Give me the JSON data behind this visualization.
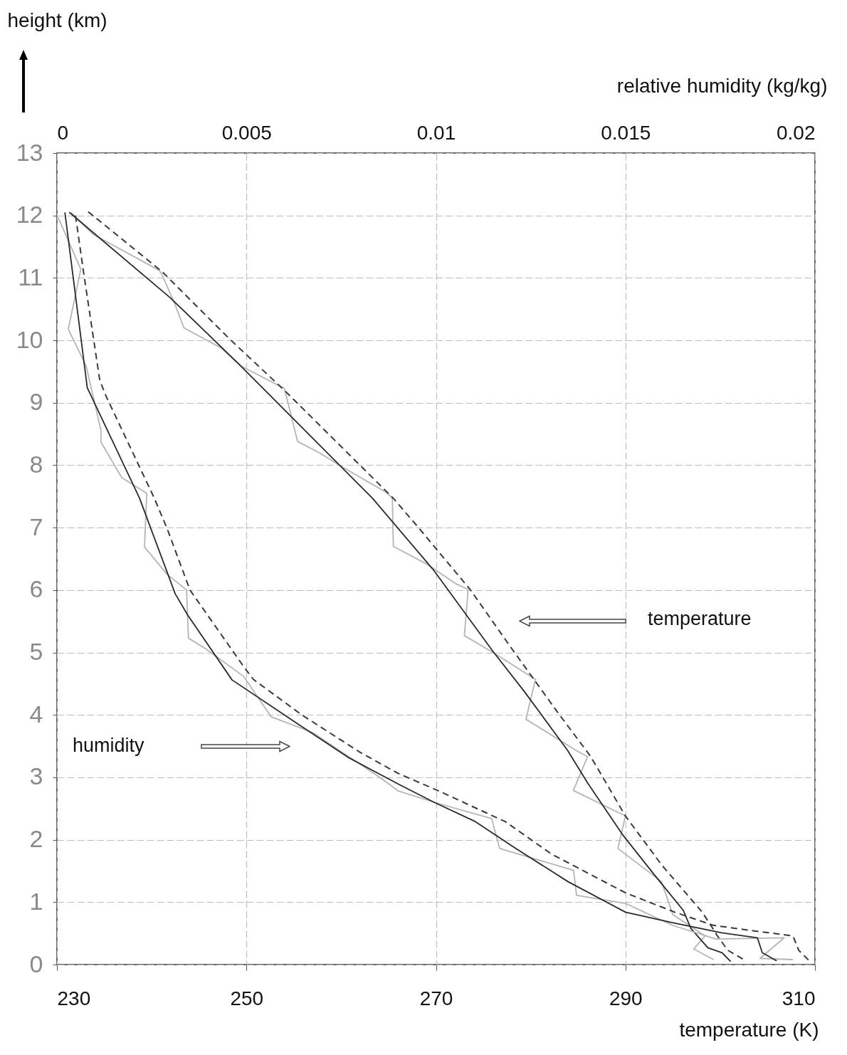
{
  "chart_data": {
    "type": "line",
    "xlabel": "temperature (K)",
    "x2label": "relative humidity (kg/kg)",
    "ylabel": "height (km)",
    "xlim": [
      230,
      310
    ],
    "xticks": [
      230,
      250,
      270,
      290,
      310
    ],
    "x2lim": [
      0,
      0.02
    ],
    "x2ticks": [
      0,
      0.005,
      0.01,
      0.015,
      0.02
    ],
    "ylim": [
      0,
      13
    ],
    "yticks": [
      0,
      1,
      2,
      3,
      4,
      5,
      6,
      7,
      8,
      9,
      10,
      11,
      12,
      13
    ],
    "grid": true,
    "annotations": [
      "temperature",
      "humidity"
    ],
    "series": [
      {
        "color": "#b5b5b5",
        "line_style": "solid",
        "x": [
          231.5,
          233.8,
          240.8,
          241.1,
          242.5,
          243.4,
          247.3,
          249.4,
          254,
          254.3,
          255.4,
          257.8,
          259.8,
          264.8,
          265.4,
          265.5,
          269.1,
          272.1,
          273.4,
          273,
          275.8,
          280.5,
          279.5,
          284.8,
          286,
          284.5,
          290,
          289.2,
          293.8,
          295,
          298.4,
          297.2,
          299.3
        ],
        "values": [
          12.05,
          11.7,
          11.12,
          11.05,
          10.56,
          10.2,
          9.88,
          9.59,
          9.23,
          9.05,
          8.38,
          8.19,
          8.0,
          7.56,
          7.47,
          6.7,
          6.41,
          6.1,
          6.01,
          5.27,
          5.02,
          4.57,
          3.93,
          3.43,
          3.33,
          2.79,
          2.38,
          1.86,
          1.33,
          0.8,
          0.46,
          0.25,
          0.08
        ]
      },
      {
        "color": "#3a3a3a",
        "line_style": "dashed",
        "x": [
          233.3,
          241.1,
          248.3,
          254,
          265.5,
          268.1,
          273.6,
          278.1,
          282.8,
          286.3,
          290,
          293.8,
          298.1,
          299,
          299.7,
          300.8,
          302.7
        ],
        "values": [
          12.06,
          11.1,
          10.01,
          9.2,
          7.47,
          7.01,
          6.01,
          5.04,
          4.05,
          3.34,
          2.38,
          1.6,
          0.84,
          0.63,
          0.46,
          0.23,
          0.06
        ]
      },
      {
        "color": "#2a2a2a",
        "line_style": "solid",
        "x": [
          231.3,
          241.9,
          249.4,
          263.3,
          269.8,
          276,
          279.3,
          283.9,
          286,
          289.7,
          293.2,
          296.1,
          296.9,
          298.7,
          300.2,
          301.1
        ],
        "values": [
          12.05,
          10.69,
          9.59,
          7.47,
          6.31,
          5.02,
          4.38,
          3.43,
          2.91,
          2.08,
          1.41,
          0.87,
          0.58,
          0.27,
          0.19,
          0.05
        ]
      },
      {
        "axis": "x2",
        "color": "#b5b5b5",
        "line_style": "solid",
        "x": [
          3e-05,
          0.00063,
          0.0003,
          0.00077,
          0.00116,
          0.00116,
          0.00171,
          0.00237,
          0.00231,
          0.00291,
          0.00342,
          0.00347,
          0.00392,
          0.00492,
          0.00565,
          0.00674,
          0.00854,
          0.00901,
          0.00995,
          0.01147,
          0.01168,
          0.01363,
          0.01371,
          0.015,
          0.01624,
          0.01739,
          0.01919,
          0.01855,
          0.01942
        ],
        "values": [
          11.97,
          11.14,
          10.18,
          9.59,
          8.56,
          8.37,
          7.8,
          7.55,
          6.69,
          6.25,
          6.0,
          5.23,
          5.06,
          4.62,
          3.97,
          3.72,
          2.99,
          2.78,
          2.6,
          2.34,
          1.86,
          1.51,
          1.11,
          0.98,
          0.63,
          0.41,
          0.43,
          0.1,
          0.08
        ]
      },
      {
        "axis": "x2",
        "color": "#3a3a3a",
        "line_style": "dashed",
        "x": [
          0.00049,
          0.0007,
          0.00113,
          0.0013,
          0.00257,
          0.00291,
          0.00351,
          0.00492,
          0.00518,
          0.00646,
          0.008,
          0.00901,
          0.01008,
          0.01183,
          0.01305,
          0.015,
          0.0163,
          0.01731,
          0.0184,
          0.01942,
          0.01957,
          0.01985
        ],
        "values": [
          12.0,
          11.1,
          9.36,
          9.1,
          7.47,
          6.98,
          6.0,
          4.78,
          4.57,
          4.0,
          3.4,
          3.06,
          2.78,
          2.29,
          1.77,
          1.15,
          0.84,
          0.63,
          0.54,
          0.46,
          0.23,
          0.06
        ]
      },
      {
        "axis": "x2",
        "color": "#2a2a2a",
        "line_style": "solid",
        "x": [
          0.00021,
          0.0008,
          0.00218,
          0.00312,
          0.00345,
          0.00462,
          0.00607,
          0.00768,
          0.00901,
          0.00995,
          0.01104,
          0.01211,
          0.01348,
          0.015,
          0.01624,
          0.01754,
          0.01848,
          0.01861,
          0.01899
        ],
        "values": [
          12.05,
          9.24,
          7.47,
          5.94,
          5.6,
          4.56,
          3.97,
          3.32,
          2.89,
          2.6,
          2.29,
          1.86,
          1.33,
          0.84,
          0.67,
          0.51,
          0.43,
          0.19,
          0.06
        ]
      }
    ]
  }
}
